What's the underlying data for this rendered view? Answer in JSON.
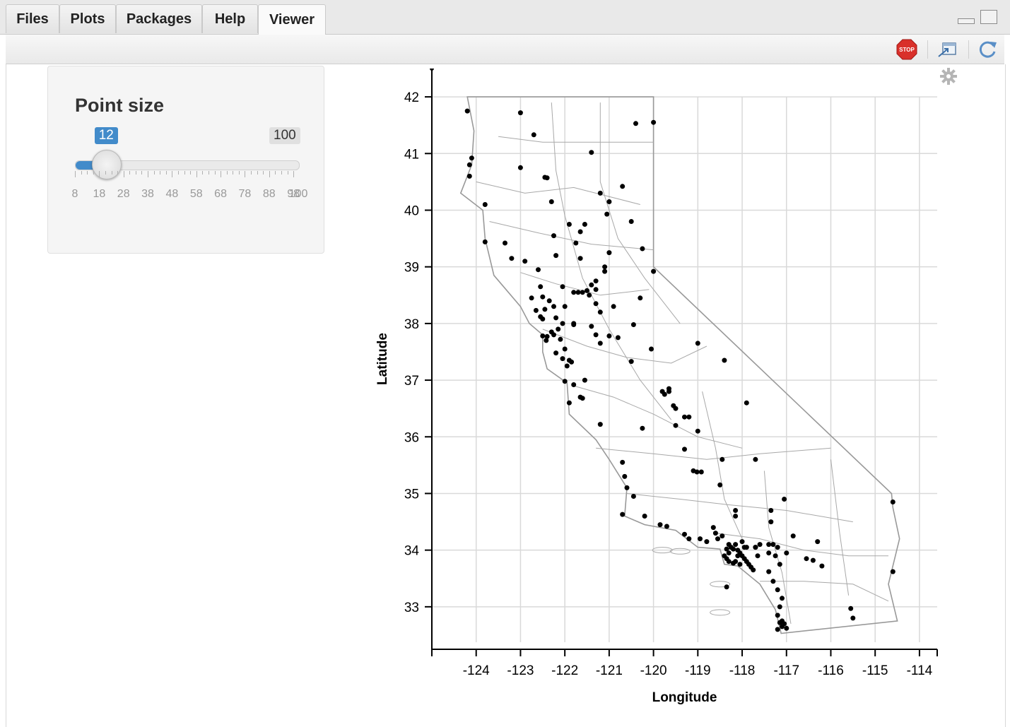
{
  "tabs": [
    {
      "label": "Files",
      "active": false
    },
    {
      "label": "Plots",
      "active": false
    },
    {
      "label": "Packages",
      "active": false
    },
    {
      "label": "Help",
      "active": false
    },
    {
      "label": "Viewer",
      "active": true
    }
  ],
  "toolbar": {
    "stop_label": "STOP",
    "icons": [
      "stop-icon",
      "popout-icon",
      "refresh-icon"
    ]
  },
  "slider": {
    "title": "Point size",
    "value": 12,
    "min": 8,
    "max": 100,
    "value_label": "12",
    "max_label": "100",
    "grid_labels": [
      "8",
      "18",
      "28",
      "38",
      "48",
      "58",
      "68",
      "78",
      "88",
      "98",
      "100"
    ],
    "accent": "#428bca"
  },
  "chart_data": {
    "type": "scatter",
    "xlabel": "Longitude",
    "ylabel": "Latitude",
    "xlim": [
      -125,
      -113.6
    ],
    "ylim": [
      32.25,
      42.5
    ],
    "xticks": [
      -124,
      -123,
      -122,
      -121,
      -120,
      -119,
      -118,
      -117,
      -116,
      -115,
      -114
    ],
    "yticks": [
      33,
      34,
      35,
      36,
      37,
      38,
      39,
      40,
      41,
      42
    ],
    "grid": true,
    "background_map": "California county/census boundaries",
    "point_color": "#000000",
    "points": [
      [
        -124.2,
        41.75
      ],
      [
        -123.0,
        41.72
      ],
      [
        -122.7,
        41.33
      ],
      [
        -121.4,
        41.02
      ],
      [
        -120.4,
        41.53
      ],
      [
        -120.0,
        41.55
      ],
      [
        -124.1,
        40.92
      ],
      [
        -124.15,
        40.8
      ],
      [
        -124.15,
        40.6
      ],
      [
        -123.0,
        40.75
      ],
      [
        -122.45,
        40.58
      ],
      [
        -122.4,
        40.57
      ],
      [
        -123.8,
        40.1
      ],
      [
        -121.2,
        40.3
      ],
      [
        -121.0,
        40.15
      ],
      [
        -120.7,
        40.42
      ],
      [
        -122.3,
        40.15
      ],
      [
        -121.05,
        39.93
      ],
      [
        -120.5,
        39.8
      ],
      [
        -121.55,
        39.75
      ],
      [
        -121.9,
        39.75
      ],
      [
        -121.65,
        39.62
      ],
      [
        -122.25,
        39.55
      ],
      [
        -121.75,
        39.42
      ],
      [
        -123.8,
        39.44
      ],
      [
        -123.35,
        39.42
      ],
      [
        -120.25,
        39.32
      ],
      [
        -121.0,
        39.25
      ],
      [
        -123.2,
        39.15
      ],
      [
        -122.9,
        39.1
      ],
      [
        -122.2,
        39.2
      ],
      [
        -121.65,
        39.15
      ],
      [
        -121.1,
        39.0
      ],
      [
        -122.6,
        38.95
      ],
      [
        -121.1,
        38.92
      ],
      [
        -120.0,
        38.92
      ],
      [
        -121.3,
        38.75
      ],
      [
        -121.4,
        38.68
      ],
      [
        -121.3,
        38.6
      ],
      [
        -121.5,
        38.58
      ],
      [
        -121.6,
        38.55
      ],
      [
        -121.45,
        38.5
      ],
      [
        -121.8,
        38.55
      ],
      [
        -122.05,
        38.65
      ],
      [
        -122.55,
        38.65
      ],
      [
        -122.5,
        38.47
      ],
      [
        -122.75,
        38.45
      ],
      [
        -122.35,
        38.4
      ],
      [
        -122.25,
        38.3
      ],
      [
        -122.45,
        38.25
      ],
      [
        -121.3,
        38.35
      ],
      [
        -121.2,
        38.2
      ],
      [
        -120.9,
        38.3
      ],
      [
        -122.0,
        38.3
      ],
      [
        -122.65,
        38.23
      ],
      [
        -122.55,
        38.12
      ],
      [
        -122.5,
        38.08
      ],
      [
        -122.2,
        38.1
      ],
      [
        -122.05,
        38.0
      ],
      [
        -121.8,
        37.98
      ],
      [
        -121.4,
        37.95
      ],
      [
        -121.3,
        37.8
      ],
      [
        -121.0,
        37.78
      ],
      [
        -120.8,
        37.75
      ],
      [
        -121.2,
        37.65
      ],
      [
        -120.45,
        37.98
      ],
      [
        -122.5,
        37.78
      ],
      [
        -122.4,
        37.77
      ],
      [
        -122.42,
        37.7
      ],
      [
        -122.3,
        37.85
      ],
      [
        -122.25,
        37.8
      ],
      [
        -122.1,
        37.72
      ],
      [
        -122.0,
        37.55
      ],
      [
        -122.2,
        37.48
      ],
      [
        -122.05,
        37.38
      ],
      [
        -121.9,
        37.35
      ],
      [
        -121.85,
        37.32
      ],
      [
        -121.95,
        37.25
      ],
      [
        -122.0,
        36.98
      ],
      [
        -121.8,
        36.92
      ],
      [
        -121.55,
        37.0
      ],
      [
        -121.65,
        36.7
      ],
      [
        -121.6,
        36.68
      ],
      [
        -121.9,
        36.6
      ],
      [
        -121.2,
        36.22
      ],
      [
        -120.25,
        36.15
      ],
      [
        -120.5,
        37.33
      ],
      [
        -120.05,
        37.55
      ],
      [
        -119.8,
        36.8
      ],
      [
        -119.75,
        36.75
      ],
      [
        -119.65,
        36.85
      ],
      [
        -119.55,
        36.55
      ],
      [
        -119.5,
        36.5
      ],
      [
        -119.3,
        36.35
      ],
      [
        -119.2,
        36.35
      ],
      [
        -119.5,
        36.2
      ],
      [
        -119.0,
        36.1
      ],
      [
        -118.4,
        37.35
      ],
      [
        -119.0,
        37.65
      ],
      [
        -117.9,
        36.6
      ],
      [
        -119.3,
        35.78
      ],
      [
        -119.1,
        35.4
      ],
      [
        -119.02,
        35.38
      ],
      [
        -118.92,
        35.38
      ],
      [
        -118.45,
        35.6
      ],
      [
        -117.7,
        35.6
      ],
      [
        -118.5,
        35.15
      ],
      [
        -120.7,
        35.55
      ],
      [
        -120.65,
        35.3
      ],
      [
        -120.6,
        35.1
      ],
      [
        -120.45,
        34.95
      ],
      [
        -120.7,
        34.63
      ],
      [
        -120.2,
        34.6
      ],
      [
        -119.85,
        34.45
      ],
      [
        -119.7,
        34.42
      ],
      [
        -119.3,
        34.28
      ],
      [
        -119.2,
        34.2
      ],
      [
        -118.95,
        34.2
      ],
      [
        -118.8,
        34.15
      ],
      [
        -118.6,
        34.3
      ],
      [
        -118.45,
        34.25
      ],
      [
        -118.3,
        34.1
      ],
      [
        -118.25,
        34.05
      ],
      [
        -118.2,
        34.02
      ],
      [
        -118.15,
        34.1
      ],
      [
        -118.1,
        34.0
      ],
      [
        -118.05,
        33.95
      ],
      [
        -118.0,
        33.9
      ],
      [
        -117.95,
        33.85
      ],
      [
        -117.9,
        33.8
      ],
      [
        -117.85,
        33.75
      ],
      [
        -117.8,
        33.7
      ],
      [
        -117.75,
        33.65
      ],
      [
        -118.4,
        33.9
      ],
      [
        -118.35,
        33.85
      ],
      [
        -118.3,
        33.8
      ],
      [
        -118.2,
        33.77
      ],
      [
        -118.15,
        33.8
      ],
      [
        -118.35,
        34.02
      ],
      [
        -118.3,
        33.95
      ],
      [
        -118.1,
        33.9
      ],
      [
        -117.9,
        34.05
      ],
      [
        -117.7,
        34.05
      ],
      [
        -117.6,
        34.1
      ],
      [
        -117.4,
        34.1
      ],
      [
        -117.3,
        34.1
      ],
      [
        -117.2,
        34.05
      ],
      [
        -117.4,
        33.95
      ],
      [
        -117.25,
        33.9
      ],
      [
        -117.15,
        33.75
      ],
      [
        -117.0,
        33.95
      ],
      [
        -116.85,
        34.25
      ],
      [
        -116.3,
        34.15
      ],
      [
        -116.55,
        33.85
      ],
      [
        -116.4,
        33.82
      ],
      [
        -116.2,
        33.72
      ],
      [
        -117.4,
        33.62
      ],
      [
        -117.3,
        33.45
      ],
      [
        -117.2,
        33.3
      ],
      [
        -117.1,
        33.15
      ],
      [
        -117.15,
        33.0
      ],
      [
        -117.2,
        32.85
      ],
      [
        -117.1,
        32.75
      ],
      [
        -117.15,
        32.72
      ],
      [
        -117.05,
        32.7
      ],
      [
        -117.1,
        32.65
      ],
      [
        -117.0,
        32.62
      ],
      [
        -117.2,
        32.6
      ],
      [
        -118.35,
        33.35
      ],
      [
        -117.35,
        34.5
      ],
      [
        -117.05,
        34.9
      ],
      [
        -115.55,
        32.97
      ],
      [
        -115.5,
        32.8
      ],
      [
        -114.6,
        34.85
      ],
      [
        -114.6,
        33.62
      ],
      [
        -117.7,
        34.05
      ],
      [
        -118.0,
        34.15
      ],
      [
        -117.95,
        34.05
      ],
      [
        -118.05,
        33.75
      ],
      [
        -117.65,
        33.9
      ],
      [
        -118.55,
        34.2
      ],
      [
        -118.65,
        34.4
      ],
      [
        -118.15,
        34.6
      ],
      [
        -118.15,
        34.7
      ],
      [
        -117.35,
        34.7
      ],
      [
        -119.65,
        36.8
      ],
      [
        -120.3,
        38.45
      ],
      [
        -121.7,
        38.55
      ],
      [
        -121.8,
        38.0
      ],
      [
        -122.15,
        37.9
      ]
    ]
  }
}
